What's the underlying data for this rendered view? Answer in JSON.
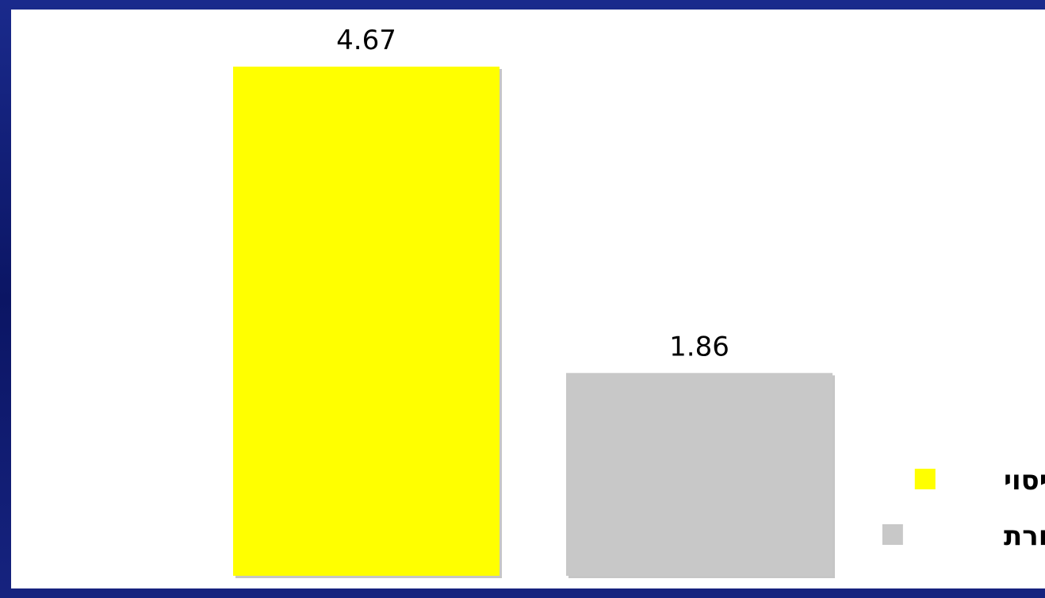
{
  "chart_data": {
    "type": "bar",
    "categories": [
      "ניסוי",
      "ביקורת"
    ],
    "values": [
      4.67,
      1.86
    ],
    "data_labels": [
      "4.67",
      "1.86"
    ],
    "colors": [
      "#ffff00",
      "#c8c8c8"
    ],
    "ylim": [
      0,
      4.67
    ],
    "grid": false,
    "legend": {
      "placement": "bottom-right",
      "entries": [
        {
          "label": "ניסוי",
          "color": "#ffff00"
        },
        {
          "label": "ביקורת",
          "color": "#c8c8c8"
        }
      ]
    }
  }
}
